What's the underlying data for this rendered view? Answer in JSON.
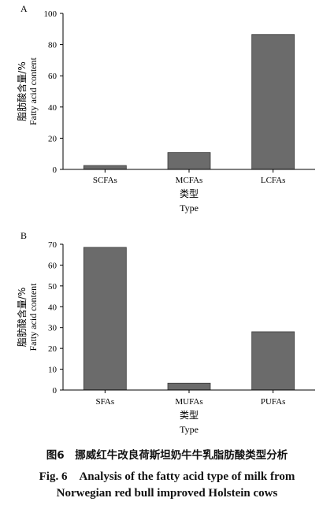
{
  "chart_data": [
    {
      "type": "bar",
      "panel": "A",
      "categories": [
        "SCFAs",
        "MCFAs",
        "LCFAs"
      ],
      "values": [
        2.5,
        10.8,
        86.5
      ],
      "ylabel_cn": "脂肪酸含量/%",
      "ylabel_en": "Fatty acid content",
      "xlabel_cn": "类型",
      "xlabel_en": "Type",
      "ylim": [
        0,
        100
      ],
      "yticks": [
        0,
        20,
        40,
        60,
        80,
        100
      ],
      "bar_color": "#6b6b6b"
    },
    {
      "type": "bar",
      "panel": "B",
      "categories": [
        "SFAs",
        "MUFAs",
        "PUFAs"
      ],
      "values": [
        68.5,
        3.3,
        28.0
      ],
      "ylabel_cn": "脂肪酸含量/%",
      "ylabel_en": "Fatty acid content",
      "xlabel_cn": "类型",
      "xlabel_en": "Type",
      "ylim": [
        0,
        70
      ],
      "yticks": [
        0,
        10,
        20,
        30,
        40,
        50,
        60,
        70
      ],
      "bar_color": "#6b6b6b"
    }
  ],
  "caption": {
    "cn": "图6　挪威红牛改良荷斯坦奶牛牛乳脂肪酸类型分析",
    "en_line1": "Fig. 6　Analysis of the fatty acid type of milk from",
    "en_line2": "Norwegian red bull improved Holstein cows"
  }
}
